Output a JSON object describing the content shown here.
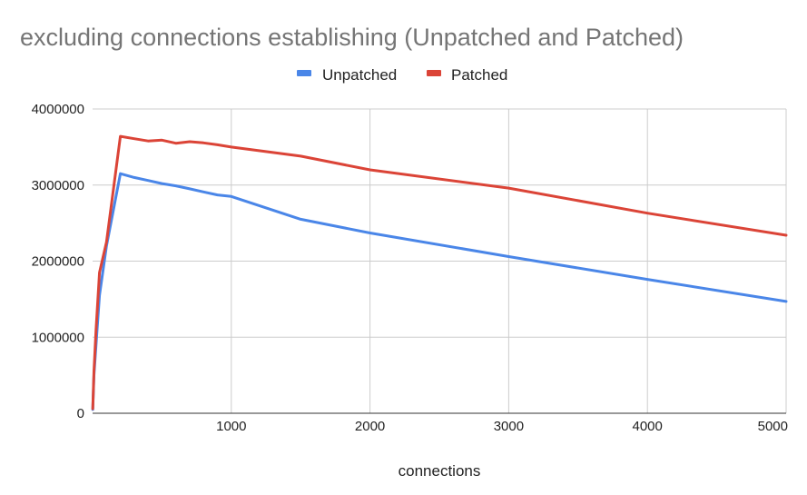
{
  "chart_data": {
    "type": "line",
    "title": "excluding connections establishing (Unpatched and Patched)",
    "xlabel": "connections",
    "ylabel": "",
    "xlim": [
      0,
      5000
    ],
    "ylim": [
      0,
      4000000
    ],
    "x_ticks": [
      1000,
      2000,
      3000,
      4000,
      5000
    ],
    "x_tick_labels": [
      "1000",
      "2000",
      "3000",
      "4000",
      "5000"
    ],
    "y_ticks": [
      0,
      1000000,
      2000000,
      3000000,
      4000000
    ],
    "y_tick_labels": [
      "0",
      "1000000",
      "2000000",
      "3000000",
      "4000000"
    ],
    "grid": true,
    "legend_position": "top-center",
    "series": [
      {
        "name": "Unpatched",
        "color": "#4a86e8",
        "points": [
          [
            1,
            50000
          ],
          [
            10,
            500000
          ],
          [
            25,
            900000
          ],
          [
            50,
            1550000
          ],
          [
            100,
            2200000
          ],
          [
            200,
            3150000
          ],
          [
            300,
            3100000
          ],
          [
            400,
            3060000
          ],
          [
            500,
            3020000
          ],
          [
            600,
            2990000
          ],
          [
            700,
            2950000
          ],
          [
            800,
            2910000
          ],
          [
            900,
            2870000
          ],
          [
            1000,
            2850000
          ],
          [
            1500,
            2550000
          ],
          [
            2000,
            2370000
          ],
          [
            3000,
            2060000
          ],
          [
            4000,
            1760000
          ],
          [
            5000,
            1470000
          ]
        ]
      },
      {
        "name": "Patched",
        "color": "#db4437",
        "points": [
          [
            1,
            60000
          ],
          [
            10,
            550000
          ],
          [
            25,
            1100000
          ],
          [
            50,
            1850000
          ],
          [
            100,
            2250000
          ],
          [
            200,
            3640000
          ],
          [
            300,
            3610000
          ],
          [
            400,
            3580000
          ],
          [
            500,
            3590000
          ],
          [
            600,
            3550000
          ],
          [
            700,
            3570000
          ],
          [
            800,
            3555000
          ],
          [
            900,
            3530000
          ],
          [
            1000,
            3500000
          ],
          [
            1500,
            3380000
          ],
          [
            2000,
            3200000
          ],
          [
            3000,
            2960000
          ],
          [
            4000,
            2630000
          ],
          [
            5000,
            2340000
          ]
        ]
      }
    ]
  }
}
